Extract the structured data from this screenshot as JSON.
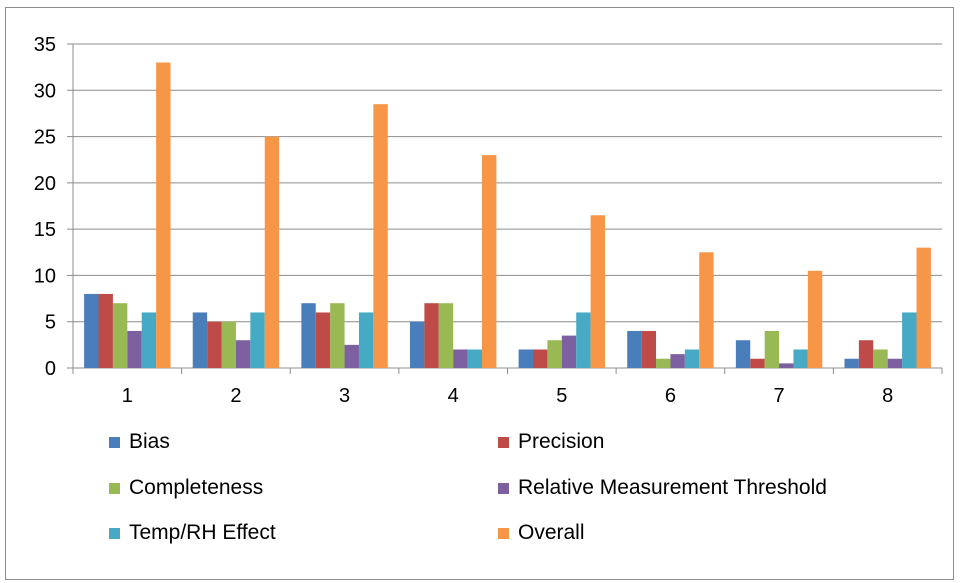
{
  "chart_data": {
    "type": "bar",
    "categories": [
      "1",
      "2",
      "3",
      "4",
      "5",
      "6",
      "7",
      "8"
    ],
    "series": [
      {
        "name": "Bias",
        "color": "#4a7ebb",
        "values": [
          8,
          6,
          7,
          5,
          2,
          4,
          3,
          1
        ]
      },
      {
        "name": "Precision",
        "color": "#be4b48",
        "values": [
          8,
          5,
          6,
          7,
          2,
          4,
          1,
          3
        ]
      },
      {
        "name": "Completeness",
        "color": "#98b954",
        "values": [
          7,
          5,
          7,
          7,
          3,
          1,
          4,
          2
        ]
      },
      {
        "name": "Relative Measurement Threshold",
        "color": "#7d60a0",
        "values": [
          4,
          3,
          2.5,
          2,
          3.5,
          1.5,
          0.5,
          1
        ]
      },
      {
        "name": "Temp/RH Effect",
        "color": "#46aac5",
        "values": [
          6,
          6,
          6,
          2,
          6,
          2,
          2,
          6
        ]
      },
      {
        "name": "Overall",
        "color": "#f79646",
        "values": [
          33,
          25,
          28.5,
          23,
          16.5,
          12.5,
          10.5,
          13
        ]
      }
    ],
    "y_ticks": [
      "0",
      "5",
      "10",
      "15",
      "20",
      "25",
      "30",
      "35"
    ],
    "ylim": [
      0,
      35
    ],
    "grid": true,
    "legend_position": "bottom"
  }
}
